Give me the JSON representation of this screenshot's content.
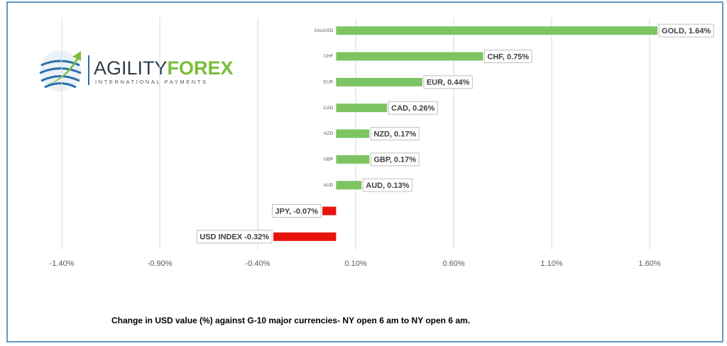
{
  "logo": {
    "name_first": "AGILITY",
    "name_second": "FOREX",
    "tagline": "INTERNATIONAL PAYMENTS"
  },
  "chart_data": {
    "type": "hbar",
    "caption": "Change in  USD value (%)  against  G-10 major currencies- NY open 6 am to NY open 6 am.",
    "categories": [
      "XAUUSD",
      "CHF",
      "EUR",
      "CAD",
      "NZD",
      "GBP",
      "AUD",
      null,
      null
    ],
    "values": [
      1.64,
      0.75,
      0.44,
      0.26,
      0.17,
      0.17,
      0.13,
      -0.07,
      -0.32
    ],
    "value_labels": [
      "GOLD, 1.64%",
      "CHF, 0.75%",
      "EUR, 0.44%",
      "CAD, 0.26%",
      "NZD, 0.17%",
      "GBP, 0.17%",
      "AUD, 0.13%",
      "JPY, -0.07%",
      "USD INDEX -0.32%"
    ],
    "colors": [
      "#7dc462",
      "#7dc462",
      "#7dc462",
      "#7dc462",
      "#7dc462",
      "#7dc462",
      "#7dc462",
      "#e8130e",
      "#e8130e"
    ],
    "xlim": [
      -1.4,
      1.85
    ],
    "xticks": [
      {
        "value": -1.4,
        "label": "-1.40%"
      },
      {
        "value": -0.9,
        "label": "-0.90%"
      },
      {
        "value": -0.4,
        "label": "-0.40%"
      },
      {
        "value": 0.1,
        "label": "0.10%"
      },
      {
        "value": 0.6,
        "label": "0.60%"
      },
      {
        "value": 1.1,
        "label": "1.10%"
      },
      {
        "value": 1.6,
        "label": "1.60%"
      }
    ],
    "grid": true
  }
}
